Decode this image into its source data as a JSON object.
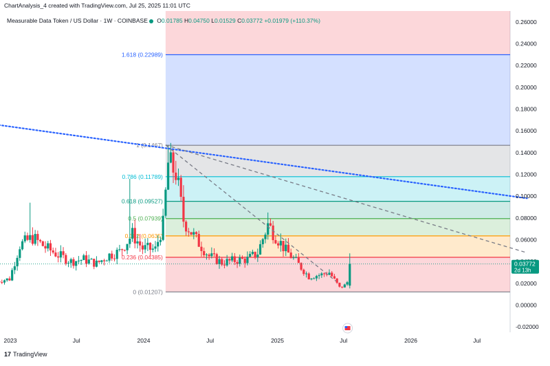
{
  "caption": "ChartAnalysis_4 created with TradingView.com, Jul 25, 2025 11:01 UTC",
  "symbol": {
    "name": "Measurable Data Token / US Dollar · 1W · COINBASE",
    "open_label": "O",
    "open": "0.01785",
    "high_label": "H",
    "high": "0.04750",
    "low_label": "L",
    "low": "0.01529",
    "close_label": "C",
    "close": "0.03772",
    "change": "+0.01979 (+110.37%)"
  },
  "price_tag": {
    "value": "0.03772",
    "countdown": "2d 13h"
  },
  "brand": {
    "logo_text": "TradingView",
    "logo_mark_icon": "tradingview-logo-icon",
    "bottom_left_icon": "tv-flag-icon"
  },
  "colors": {
    "up": "#089981",
    "down": "#f23645",
    "trendline": "#2962ff",
    "fib_236_line": "#f23645",
    "fib_382_line": "#ff9800",
    "fib_5_line": "#4caf50",
    "fib_618_line": "#089981",
    "fib_786_line": "#00bcd4",
    "fib_1_line": "#787b86",
    "fib_1618_line": "#2962ff"
  },
  "chart_data": {
    "type": "candlestick",
    "title": "Measurable Data Token / US Dollar · 1W · COINBASE",
    "x_ticks": [
      "2023",
      "Jul",
      "2024",
      "Jul",
      "2025",
      "Jul",
      "2026",
      "Jul"
    ],
    "y_ticks": [
      "0.26000",
      "0.24000",
      "0.22000",
      "0.20000",
      "0.18000",
      "0.16000",
      "0.14000",
      "0.12000",
      "0.10000",
      "0.08000",
      "0.06000",
      "0.04000",
      "0.02000",
      "0.00000",
      "-0.02000"
    ],
    "ylim": [
      -0.025,
      0.27
    ],
    "last_close": 0.03772,
    "fib_levels": [
      {
        "ratio": "0",
        "price": 0.01207,
        "label": "0 (0.01207)"
      },
      {
        "ratio": "0.236",
        "price": 0.04385,
        "label": "0.236 (0.04385)"
      },
      {
        "ratio": "0.382",
        "price": 0.0635,
        "label": "0.382 (0.0635)"
      },
      {
        "ratio": "0.5",
        "price": 0.07939,
        "label": "0.5 (0.07939)"
      },
      {
        "ratio": "0.618",
        "price": 0.09527,
        "label": "0.618 (0.09527)"
      },
      {
        "ratio": "0.786",
        "price": 0.11789,
        "label": "0.786 (0.11789)"
      },
      {
        "ratio": "1",
        "price": 0.1467,
        "label": "1 (0.1467)"
      },
      {
        "ratio": "1.618",
        "price": 0.22989,
        "label": "1.618 (0.22989)"
      }
    ],
    "trendlines": [
      {
        "style": "dotted",
        "color": "#2962ff",
        "from": {
          "date": "2022-08-01",
          "price": 0.171
        },
        "to": {
          "date": "2026-11-15",
          "price": 0.098
        }
      },
      {
        "style": "dashed",
        "color": "#787b86",
        "from": {
          "date": "2024-03-01",
          "price": 0.147
        },
        "to": {
          "date": "2026-11-15",
          "price": 0.048
        }
      },
      {
        "style": "dashed",
        "color": "#787b86",
        "from": {
          "date": "2024-03-01",
          "price": 0.147
        },
        "to": {
          "date": "2025-06-10",
          "price": 0.022
        }
      }
    ],
    "segments": [
      [
        "2022-11-25",
        0.022
      ],
      [
        "2022-12-30",
        0.024
      ],
      [
        "2023-01-27",
        0.055
      ],
      [
        "2023-03-03",
        0.062
      ],
      [
        "2023-04-07",
        0.053
      ],
      [
        "2023-05-12",
        0.046
      ],
      [
        "2023-06-16",
        0.04
      ],
      [
        "2023-07-21",
        0.042
      ],
      [
        "2023-08-25",
        0.038
      ],
      [
        "2023-09-29",
        0.046
      ],
      [
        "2023-10-27",
        0.049
      ],
      [
        "2023-12-01",
        0.065
      ],
      [
        "2023-12-29",
        0.052
      ],
      [
        "2024-02-02",
        0.051
      ],
      [
        "2024-02-23",
        0.074
      ],
      [
        "2024-03-08",
        0.13
      ],
      [
        "2024-03-29",
        0.122
      ],
      [
        "2024-04-19",
        0.078
      ],
      [
        "2024-05-24",
        0.06
      ],
      [
        "2024-06-28",
        0.045
      ],
      [
        "2024-08-02",
        0.039
      ],
      [
        "2024-09-06",
        0.041
      ],
      [
        "2024-10-11",
        0.042
      ],
      [
        "2024-11-08",
        0.048
      ],
      [
        "2024-12-06",
        0.074
      ],
      [
        "2024-12-20",
        0.067
      ],
      [
        "2025-01-24",
        0.05
      ],
      [
        "2025-02-21",
        0.04
      ],
      [
        "2025-03-28",
        0.026
      ],
      [
        "2025-05-02",
        0.028
      ],
      [
        "2025-05-23",
        0.03
      ],
      [
        "2025-06-20",
        0.016
      ],
      [
        "2025-07-04",
        0.018
      ],
      [
        "2025-07-18",
        0.024
      ]
    ]
  }
}
